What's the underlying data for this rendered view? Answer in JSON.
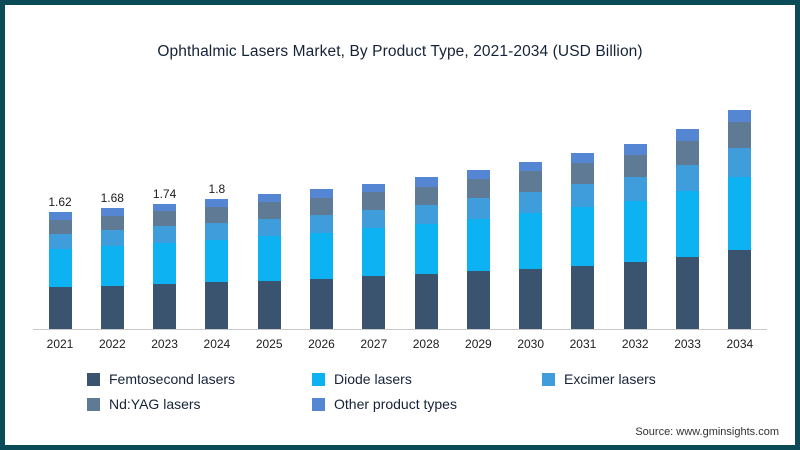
{
  "footer": {
    "source": "Source: www.gminsights.com"
  },
  "colors": {
    "frame_border": "#0b4b58",
    "axis_line": "#c9c9c9",
    "text": "#152338"
  },
  "chart_data": {
    "type": "bar",
    "stacked": true,
    "title": "Ophthalmic Lasers Market, By Product Type, 2021-2034 (USD Billion)",
    "xlabel": "",
    "ylabel": "USD Billion",
    "ylim": [
      0,
      3.2
    ],
    "grid": false,
    "legend_position": "bottom",
    "categories": [
      "2021",
      "2022",
      "2023",
      "2024",
      "2025",
      "2026",
      "2027",
      "2028",
      "2029",
      "2030",
      "2031",
      "2032",
      "2033",
      "2034"
    ],
    "series": [
      {
        "name": "Femtosecond lasers",
        "color": "#3a536e",
        "values": [
          0.58,
          0.6,
          0.63,
          0.65,
          0.67,
          0.7,
          0.73,
          0.76,
          0.8,
          0.84,
          0.88,
          0.93,
          1.0,
          1.1
        ]
      },
      {
        "name": "Diode lasers",
        "color": "#0db2f2",
        "values": [
          0.53,
          0.55,
          0.57,
          0.59,
          0.62,
          0.64,
          0.67,
          0.7,
          0.73,
          0.77,
          0.81,
          0.85,
          0.92,
          1.01
        ]
      },
      {
        "name": "Excimer lasers",
        "color": "#3f9ddb",
        "values": [
          0.21,
          0.22,
          0.23,
          0.23,
          0.24,
          0.25,
          0.26,
          0.27,
          0.29,
          0.3,
          0.32,
          0.33,
          0.36,
          0.4
        ]
      },
      {
        "name": "Nd:YAG lasers",
        "color": "#5e7a94",
        "values": [
          0.2,
          0.2,
          0.21,
          0.22,
          0.23,
          0.23,
          0.24,
          0.25,
          0.27,
          0.28,
          0.29,
          0.31,
          0.33,
          0.37
        ]
      },
      {
        "name": "Other product types",
        "color": "#5486d4",
        "values": [
          0.1,
          0.11,
          0.1,
          0.11,
          0.11,
          0.12,
          0.12,
          0.13,
          0.12,
          0.13,
          0.14,
          0.15,
          0.17,
          0.17
        ]
      }
    ],
    "totals": [
      1.62,
      1.68,
      1.74,
      1.8,
      1.87,
      1.94,
      2.02,
      2.11,
      2.21,
      2.32,
      2.44,
      2.57,
      2.78,
      3.05
    ],
    "bar_labels": [
      "1.62",
      "1.68",
      "1.74",
      "1.8",
      null,
      null,
      null,
      null,
      null,
      null,
      null,
      null,
      null,
      null
    ]
  }
}
